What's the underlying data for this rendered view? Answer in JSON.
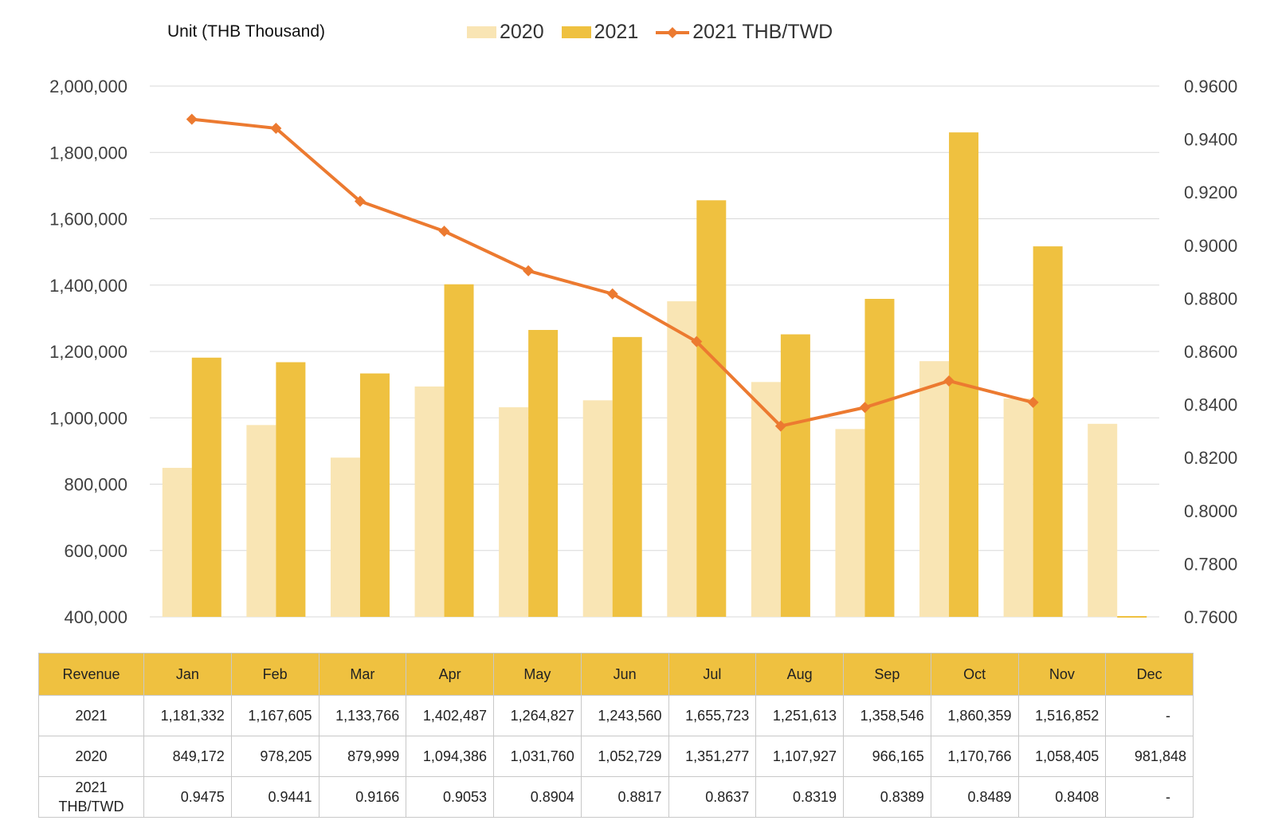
{
  "unit_label": "Unit (THB  Thousand)",
  "colors": {
    "bar_2020": "#f9e5b4",
    "bar_2021": "#efc140",
    "line": "#ec7a30",
    "grid": "#d9d9d9",
    "table_header": "#efc140"
  },
  "chart_data": {
    "type": "bar",
    "categories": [
      "Jan",
      "Feb",
      "Mar",
      "Apr",
      "May",
      "Jun",
      "Jul",
      "Aug",
      "Sep",
      "Oct",
      "Nov",
      "Dec"
    ],
    "series": [
      {
        "name": "2020",
        "type": "bar",
        "values": [
          849172,
          978205,
          879999,
          1094386,
          1031760,
          1052729,
          1351277,
          1107927,
          966165,
          1170766,
          1058405,
          981848
        ]
      },
      {
        "name": "2021",
        "type": "bar",
        "values": [
          1181332,
          1167605,
          1133766,
          1402487,
          1264827,
          1243560,
          1655723,
          1251613,
          1358546,
          1860359,
          1516852,
          null
        ]
      },
      {
        "name": "2021 THB/TWD",
        "type": "line",
        "axis": "right",
        "values": [
          0.9475,
          0.9441,
          0.9166,
          0.9053,
          0.8904,
          0.8817,
          0.8637,
          0.8319,
          0.8389,
          0.8489,
          0.8408,
          null
        ]
      }
    ],
    "ylim": [
      400000,
      2000000
    ],
    "yticks": [
      "2,000,000",
      "1,800,000",
      "1,600,000",
      "1,400,000",
      "1,200,000",
      "1,000,000",
      "800,000",
      "600,000",
      "400,000"
    ],
    "y2lim": [
      0.76,
      0.96
    ],
    "y2ticks": [
      "0.9600",
      "0.9400",
      "0.9200",
      "0.9000",
      "0.8800",
      "0.8600",
      "0.8400",
      "0.8200",
      "0.8000",
      "0.7800",
      "0.7600"
    ],
    "grid": true,
    "legend": "top"
  },
  "table": {
    "header": [
      "Revenue",
      "Jan",
      "Feb",
      "Mar",
      "Apr",
      "May",
      "Jun",
      "Jul",
      "Aug",
      "Sep",
      "Oct",
      "Nov",
      "Dec"
    ],
    "rows": [
      {
        "label": "2021",
        "cells": [
          "1,181,332",
          "1,167,605",
          "1,133,766",
          "1,402,487",
          "1,264,827",
          "1,243,560",
          "1,655,723",
          "1,251,613",
          "1,358,546",
          "1,860,359",
          "1,516,852",
          "-"
        ]
      },
      {
        "label": "2020",
        "cells": [
          "849,172",
          "978,205",
          "879,999",
          "1,094,386",
          "1,031,760",
          "1,052,729",
          "1,351,277",
          "1,107,927",
          "966,165",
          "1,170,766",
          "1,058,405",
          "981,848"
        ]
      },
      {
        "label": "2021 THB/TWD",
        "cells": [
          "0.9475",
          "0.9441",
          "0.9166",
          "0.9053",
          "0.8904",
          "0.8817",
          "0.8637",
          "0.8319",
          "0.8389",
          "0.8489",
          "0.8408",
          "-"
        ]
      }
    ]
  }
}
